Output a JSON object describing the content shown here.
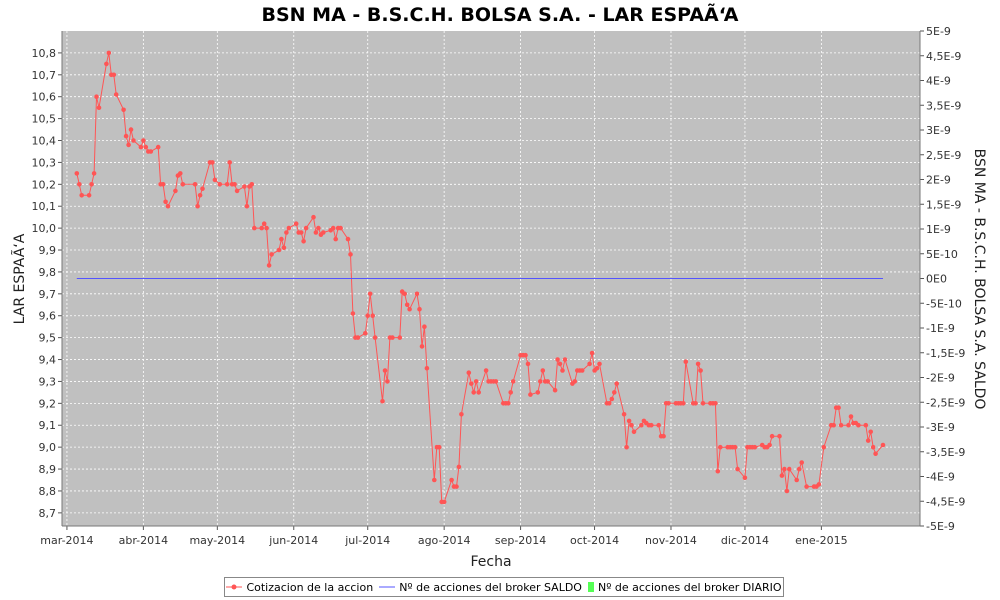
{
  "chart_data": {
    "type": "line",
    "title": "BSN MA - B.S.C.H. BOLSA S.A. - LAR ESPAÃ‘A",
    "xlabel": "Fecha",
    "ylabel": "LAR ESPAÃ‘A",
    "y2label": "BSN MA - B.S.C.H. BOLSA S.A. SALDO",
    "x_ticks": [
      "mar-2014",
      "abr-2014",
      "may-2014",
      "jun-2014",
      "jul-2014",
      "ago-2014",
      "sep-2014",
      "oct-2014",
      "nov-2014",
      "dic-2014",
      "ene-2015"
    ],
    "y_ticks": [
      "8,7",
      "8,8",
      "8,9",
      "9,0",
      "9,1",
      "9,2",
      "9,3",
      "9,4",
      "9,5",
      "9,6",
      "9,7",
      "9,8",
      "9,9",
      "10,0",
      "10,1",
      "10,2",
      "10,3",
      "10,4",
      "10,5",
      "10,6",
      "10,7",
      "10,8"
    ],
    "y2_ticks": [
      "5E-9",
      "4,5E-9",
      "4E-9",
      "3,5E-9",
      "3E-9",
      "2,5E-9",
      "2E-9",
      "1,5E-9",
      "1E-9",
      "5E-10",
      "0E0",
      "-5E-10",
      "-1E-9",
      "-1,5E-9",
      "-2E-9",
      "-2,5E-9",
      "-3E-9",
      "-3,5E-9",
      "-4E-9",
      "-4,5E-9",
      "-5E-9"
    ],
    "ylim": [
      8.64,
      10.9
    ],
    "y2lim": [
      -5e-09,
      5e-09
    ],
    "x_start": "2014-03-01",
    "grid": true,
    "legend_position": "bottom",
    "series": [
      {
        "name": "Cotizacion de la accion",
        "axis": "left",
        "color": "#ff5555",
        "x": [
          "2014-03-05",
          "2014-03-06",
          "2014-03-07",
          "2014-03-10",
          "2014-03-11",
          "2014-03-12",
          "2014-03-13",
          "2014-03-14",
          "2014-03-17",
          "2014-03-18",
          "2014-03-19",
          "2014-03-20",
          "2014-03-21",
          "2014-03-24",
          "2014-03-25",
          "2014-03-26",
          "2014-03-27",
          "2014-03-28",
          "2014-03-31",
          "2014-04-01",
          "2014-04-02",
          "2014-04-03",
          "2014-04-04",
          "2014-04-07",
          "2014-04-08",
          "2014-04-09",
          "2014-04-10",
          "2014-04-11",
          "2014-04-14",
          "2014-04-15",
          "2014-04-16",
          "2014-04-17",
          "2014-04-22",
          "2014-04-23",
          "2014-04-24",
          "2014-04-25",
          "2014-04-28",
          "2014-04-29",
          "2014-04-30",
          "2014-05-02",
          "2014-05-05",
          "2014-05-06",
          "2014-05-07",
          "2014-05-08",
          "2014-05-09",
          "2014-05-12",
          "2014-05-13",
          "2014-05-14",
          "2014-05-15",
          "2014-05-16",
          "2014-05-19",
          "2014-05-20",
          "2014-05-21",
          "2014-05-22",
          "2014-05-23",
          "2014-05-26",
          "2014-05-27",
          "2014-05-28",
          "2014-05-29",
          "2014-05-30",
          "2014-06-02",
          "2014-06-03",
          "2014-06-04",
          "2014-06-05",
          "2014-06-06",
          "2014-06-09",
          "2014-06-10",
          "2014-06-11",
          "2014-06-12",
          "2014-06-13",
          "2014-06-16",
          "2014-06-17",
          "2014-06-18",
          "2014-06-19",
          "2014-06-20",
          "2014-06-23",
          "2014-06-24",
          "2014-06-25",
          "2014-06-26",
          "2014-06-27",
          "2014-06-30",
          "2014-07-01",
          "2014-07-02",
          "2014-07-03",
          "2014-07-04",
          "2014-07-07",
          "2014-07-08",
          "2014-07-09",
          "2014-07-10",
          "2014-07-11",
          "2014-07-14",
          "2014-07-15",
          "2014-07-16",
          "2014-07-17",
          "2014-07-18",
          "2014-07-21",
          "2014-07-22",
          "2014-07-23",
          "2014-07-24",
          "2014-07-25",
          "2014-07-28",
          "2014-07-29",
          "2014-07-30",
          "2014-07-31",
          "2014-08-01",
          "2014-08-04",
          "2014-08-05",
          "2014-08-06",
          "2014-08-07",
          "2014-08-08",
          "2014-08-11",
          "2014-08-12",
          "2014-08-13",
          "2014-08-14",
          "2014-08-15",
          "2014-08-18",
          "2014-08-19",
          "2014-08-20",
          "2014-08-21",
          "2014-08-22",
          "2014-08-25",
          "2014-08-26",
          "2014-08-27",
          "2014-08-28",
          "2014-08-29",
          "2014-09-01",
          "2014-09-02",
          "2014-09-03",
          "2014-09-04",
          "2014-09-05",
          "2014-09-08",
          "2014-09-09",
          "2014-09-10",
          "2014-09-11",
          "2014-09-12",
          "2014-09-15",
          "2014-09-16",
          "2014-09-17",
          "2014-09-18",
          "2014-09-19",
          "2014-09-22",
          "2014-09-23",
          "2014-09-24",
          "2014-09-25",
          "2014-09-26",
          "2014-09-29",
          "2014-09-30",
          "2014-10-01",
          "2014-10-02",
          "2014-10-03",
          "2014-10-06",
          "2014-10-07",
          "2014-10-08",
          "2014-10-09",
          "2014-10-10",
          "2014-10-13",
          "2014-10-14",
          "2014-10-15",
          "2014-10-16",
          "2014-10-17",
          "2014-10-20",
          "2014-10-21",
          "2014-10-22",
          "2014-10-23",
          "2014-10-24",
          "2014-10-27",
          "2014-10-28",
          "2014-10-29",
          "2014-10-30",
          "2014-10-31",
          "2014-11-03",
          "2014-11-04",
          "2014-11-05",
          "2014-11-06",
          "2014-11-07",
          "2014-11-10",
          "2014-11-11",
          "2014-11-12",
          "2014-11-13",
          "2014-11-14",
          "2014-11-17",
          "2014-11-18",
          "2014-11-19",
          "2014-11-20",
          "2014-11-21",
          "2014-11-24",
          "2014-11-25",
          "2014-11-26",
          "2014-11-27",
          "2014-11-28",
          "2014-12-01",
          "2014-12-02",
          "2014-12-03",
          "2014-12-04",
          "2014-12-05",
          "2014-12-08",
          "2014-12-09",
          "2014-12-10",
          "2014-12-11",
          "2014-12-12",
          "2014-12-15",
          "2014-12-16",
          "2014-12-17",
          "2014-12-18",
          "2014-12-19",
          "2014-12-22",
          "2014-12-23",
          "2014-12-24",
          "2014-12-26",
          "2014-12-29",
          "2014-12-30",
          "2014-12-31",
          "2015-01-02",
          "2015-01-05",
          "2015-01-06",
          "2015-01-07",
          "2015-01-08",
          "2015-01-09",
          "2015-01-12",
          "2015-01-13",
          "2015-01-14",
          "2015-01-15",
          "2015-01-16",
          "2015-01-19",
          "2015-01-20",
          "2015-01-21",
          "2015-01-22",
          "2015-01-23",
          "2015-01-26"
        ],
        "y": [
          10.25,
          10.2,
          10.15,
          10.15,
          10.2,
          10.25,
          10.6,
          10.55,
          10.75,
          10.8,
          10.7,
          10.7,
          10.61,
          10.54,
          10.42,
          10.38,
          10.45,
          10.4,
          10.37,
          10.4,
          10.37,
          10.35,
          10.35,
          10.37,
          10.2,
          10.2,
          10.12,
          10.1,
          10.17,
          10.24,
          10.25,
          10.2,
          10.2,
          10.1,
          10.15,
          10.18,
          10.3,
          10.3,
          10.22,
          10.2,
          10.2,
          10.3,
          10.2,
          10.2,
          10.17,
          10.19,
          10.1,
          10.19,
          10.2,
          10.0,
          10.0,
          10.02,
          10.0,
          9.83,
          9.88,
          9.9,
          9.95,
          9.91,
          9.98,
          10.0,
          10.02,
          9.98,
          9.98,
          9.94,
          10.0,
          10.05,
          9.98,
          10.0,
          9.97,
          9.98,
          9.99,
          10.0,
          9.95,
          10.0,
          10.0,
          9.95,
          9.88,
          9.61,
          9.5,
          9.5,
          9.52,
          9.6,
          9.7,
          9.6,
          9.5,
          9.21,
          9.35,
          9.3,
          9.5,
          9.5,
          9.5,
          9.71,
          9.7,
          9.65,
          9.63,
          9.7,
          9.63,
          9.46,
          9.55,
          9.36,
          8.85,
          9.0,
          9.0,
          8.75,
          8.75,
          8.85,
          8.82,
          8.82,
          8.91,
          9.15,
          9.34,
          9.29,
          9.25,
          9.3,
          9.25,
          9.35,
          9.3,
          9.3,
          9.3,
          9.3,
          9.2,
          9.2,
          9.2,
          9.25,
          9.3,
          9.42,
          9.42,
          9.42,
          9.38,
          9.24,
          9.25,
          9.3,
          9.35,
          9.3,
          9.3,
          9.26,
          9.4,
          9.38,
          9.35,
          9.4,
          9.29,
          9.3,
          9.35,
          9.35,
          9.35,
          9.38,
          9.43,
          9.35,
          9.36,
          9.38,
          9.2,
          9.2,
          9.22,
          9.25,
          9.29,
          9.15,
          9.0,
          9.12,
          9.1,
          9.07,
          9.1,
          9.12,
          9.11,
          9.1,
          9.1,
          9.1,
          9.05,
          9.05,
          9.2,
          9.2,
          9.2,
          9.2,
          9.2,
          9.2,
          9.39,
          9.2,
          9.2,
          9.38,
          9.35,
          9.2,
          9.2,
          9.2,
          9.2,
          8.89,
          9.0,
          9.0,
          9.0,
          9.0,
          9.0,
          8.9,
          8.86,
          9.0,
          9.0,
          9.0,
          9.0,
          9.01,
          9.0,
          9.0,
          9.01,
          9.05,
          9.05,
          8.87,
          8.9,
          8.8,
          8.9,
          8.85,
          8.9,
          8.93,
          8.82,
          8.82,
          8.82,
          8.83,
          9.0,
          9.1,
          9.1,
          9.18,
          9.18,
          9.1,
          9.1,
          9.14,
          9.11,
          9.11,
          9.1,
          9.1,
          9.03,
          9.07,
          9.0,
          8.97,
          9.01
        ]
      },
      {
        "name": "Nº de acciones del broker SALDO",
        "axis": "right",
        "color": "#5555ff",
        "x": [
          "2014-03-05",
          "2015-01-26"
        ],
        "y": [
          0,
          0
        ]
      },
      {
        "name": "Nº de acciones del broker DIARIO",
        "axis": "right",
        "color": "#55ff55",
        "x": [],
        "y": []
      }
    ]
  }
}
